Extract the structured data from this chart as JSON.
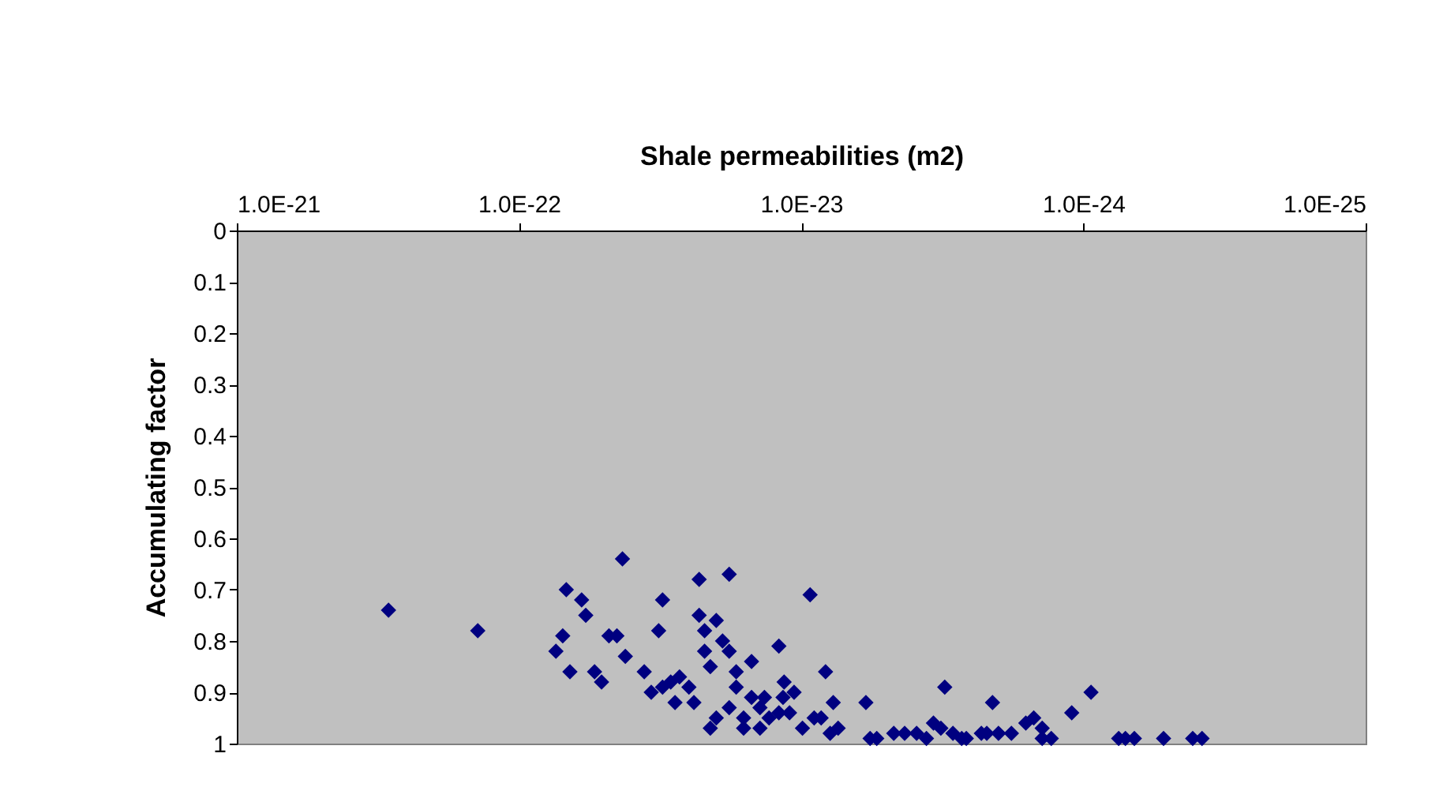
{
  "chart_data": {
    "type": "scatter",
    "xlabel": "Shale permeabilities (m2)",
    "ylabel": "Accumulating factor",
    "log": "x",
    "grid": false,
    "marker": "diamond",
    "xlim": [
      1e-21,
      1e-25
    ],
    "xticks": [
      {
        "value": 1e-21,
        "label": "1.0E-21"
      },
      {
        "value": 1e-22,
        "label": "1.0E-22"
      },
      {
        "value": 1e-23,
        "label": "1.0E-23"
      },
      {
        "value": 1e-24,
        "label": "1.0E-24"
      },
      {
        "value": 1e-25,
        "label": "1.0E-25"
      }
    ],
    "ylim": [
      1,
      0
    ],
    "yticks": [
      0,
      0.1,
      0.2,
      0.3,
      0.4,
      0.5,
      0.6,
      0.7,
      0.8,
      0.9,
      1
    ],
    "x": [
      2.9e-22,
      1.4e-22,
      6.8e-23,
      6e-23,
      5.8e-23,
      4.3e-23,
      7.4e-23,
      7e-23,
      6.6e-23,
      5.4e-23,
      5.1e-23,
      4.8e-23,
      4.5e-23,
      4.2e-23,
      3.6e-23,
      3.4e-23,
      3.2e-23,
      3.1e-23,
      3.1e-23,
      2.9e-23,
      2.8e-23,
      2.7e-23,
      2.5e-23,
      2.4e-23,
      2.3e-23,
      2.3e-23,
      2.2e-23,
      2.2e-23,
      2.1e-23,
      2.1e-23,
      2e-23,
      2e-23,
      1.9e-23,
      1.8e-23,
      1.8e-23,
      1.8e-23,
      1.7e-23,
      1.7e-23,
      1.6e-23,
      1.6e-23,
      1.5e-23,
      1.5e-23,
      1.4e-23,
      1.4e-23,
      1.35e-23,
      1.3e-23,
      1.2e-23,
      1.2e-23,
      1.16e-23,
      1.15e-23,
      1.1e-23,
      1.06e-23,
      9.9e-24,
      9.3e-24,
      9e-24,
      8.5e-24,
      8.2e-24,
      7.9e-24,
      7.7e-24,
      7.4e-24,
      5.9e-24,
      5.7e-24,
      5.4e-24,
      4.7e-24,
      4.3e-24,
      3.9e-24,
      3.6e-24,
      3.4e-24,
      3.2e-24,
      3.1e-24,
      2.9e-24,
      2.7e-24,
      2.6e-24,
      2.3e-24,
      2.2e-24,
      2.1e-24,
      2e-24,
      1.8e-24,
      1.6e-24,
      1.5e-24,
      1.4e-24,
      1.4e-24,
      1.3e-24,
      1.1e-24,
      9.4e-25,
      7.5e-25,
      7.1e-25,
      6.6e-25,
      5.2e-25,
      4.1e-25,
      3.8e-25
    ],
    "series": [
      {
        "color": "#000080",
        "values": [
          0.74,
          0.78,
          0.7,
          0.72,
          0.75,
          0.64,
          0.82,
          0.79,
          0.86,
          0.86,
          0.88,
          0.79,
          0.79,
          0.83,
          0.86,
          0.9,
          0.78,
          0.72,
          0.89,
          0.88,
          0.92,
          0.87,
          0.89,
          0.92,
          0.68,
          0.75,
          0.82,
          0.78,
          0.85,
          0.97,
          0.95,
          0.76,
          0.8,
          0.67,
          0.93,
          0.82,
          0.89,
          0.86,
          0.95,
          0.97,
          0.91,
          0.84,
          0.93,
          0.97,
          0.91,
          0.95,
          0.94,
          0.81,
          0.91,
          0.88,
          0.94,
          0.9,
          0.97,
          0.71,
          0.95,
          0.95,
          0.86,
          0.98,
          0.92,
          0.97,
          0.92,
          0.99,
          0.99,
          0.98,
          0.98,
          0.98,
          0.99,
          0.96,
          0.97,
          0.89,
          0.98,
          0.99,
          0.99,
          0.98,
          0.98,
          0.92,
          0.98,
          0.98,
          0.96,
          0.95,
          0.97,
          0.99,
          0.99,
          0.94,
          0.9,
          0.99,
          0.99,
          0.99,
          0.99,
          0.99,
          0.99
        ]
      }
    ]
  }
}
